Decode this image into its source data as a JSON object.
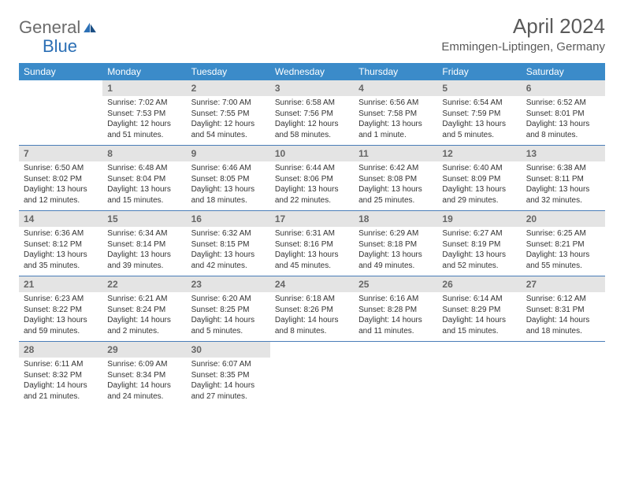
{
  "brand": {
    "part1": "General",
    "part2": "Blue"
  },
  "title": "April 2024",
  "location": "Emmingen-Liptingen, Germany",
  "colors": {
    "header_bg": "#3b8bc9",
    "header_text": "#ffffff",
    "daynum_bg": "#e4e4e4",
    "daynum_text": "#666666",
    "row_border": "#4a7db8",
    "logo_gray": "#6b6b6b",
    "logo_blue": "#2b6fb5",
    "body_text": "#333333",
    "title_text": "#5a5a5a"
  },
  "weekdays": [
    "Sunday",
    "Monday",
    "Tuesday",
    "Wednesday",
    "Thursday",
    "Friday",
    "Saturday"
  ],
  "weeks": [
    [
      null,
      {
        "n": "1",
        "sr": "7:02 AM",
        "ss": "7:53 PM",
        "dl": "12 hours and 51 minutes."
      },
      {
        "n": "2",
        "sr": "7:00 AM",
        "ss": "7:55 PM",
        "dl": "12 hours and 54 minutes."
      },
      {
        "n": "3",
        "sr": "6:58 AM",
        "ss": "7:56 PM",
        "dl": "12 hours and 58 minutes."
      },
      {
        "n": "4",
        "sr": "6:56 AM",
        "ss": "7:58 PM",
        "dl": "13 hours and 1 minute."
      },
      {
        "n": "5",
        "sr": "6:54 AM",
        "ss": "7:59 PM",
        "dl": "13 hours and 5 minutes."
      },
      {
        "n": "6",
        "sr": "6:52 AM",
        "ss": "8:01 PM",
        "dl": "13 hours and 8 minutes."
      }
    ],
    [
      {
        "n": "7",
        "sr": "6:50 AM",
        "ss": "8:02 PM",
        "dl": "13 hours and 12 minutes."
      },
      {
        "n": "8",
        "sr": "6:48 AM",
        "ss": "8:04 PM",
        "dl": "13 hours and 15 minutes."
      },
      {
        "n": "9",
        "sr": "6:46 AM",
        "ss": "8:05 PM",
        "dl": "13 hours and 18 minutes."
      },
      {
        "n": "10",
        "sr": "6:44 AM",
        "ss": "8:06 PM",
        "dl": "13 hours and 22 minutes."
      },
      {
        "n": "11",
        "sr": "6:42 AM",
        "ss": "8:08 PM",
        "dl": "13 hours and 25 minutes."
      },
      {
        "n": "12",
        "sr": "6:40 AM",
        "ss": "8:09 PM",
        "dl": "13 hours and 29 minutes."
      },
      {
        "n": "13",
        "sr": "6:38 AM",
        "ss": "8:11 PM",
        "dl": "13 hours and 32 minutes."
      }
    ],
    [
      {
        "n": "14",
        "sr": "6:36 AM",
        "ss": "8:12 PM",
        "dl": "13 hours and 35 minutes."
      },
      {
        "n": "15",
        "sr": "6:34 AM",
        "ss": "8:14 PM",
        "dl": "13 hours and 39 minutes."
      },
      {
        "n": "16",
        "sr": "6:32 AM",
        "ss": "8:15 PM",
        "dl": "13 hours and 42 minutes."
      },
      {
        "n": "17",
        "sr": "6:31 AM",
        "ss": "8:16 PM",
        "dl": "13 hours and 45 minutes."
      },
      {
        "n": "18",
        "sr": "6:29 AM",
        "ss": "8:18 PM",
        "dl": "13 hours and 49 minutes."
      },
      {
        "n": "19",
        "sr": "6:27 AM",
        "ss": "8:19 PM",
        "dl": "13 hours and 52 minutes."
      },
      {
        "n": "20",
        "sr": "6:25 AM",
        "ss": "8:21 PM",
        "dl": "13 hours and 55 minutes."
      }
    ],
    [
      {
        "n": "21",
        "sr": "6:23 AM",
        "ss": "8:22 PM",
        "dl": "13 hours and 59 minutes."
      },
      {
        "n": "22",
        "sr": "6:21 AM",
        "ss": "8:24 PM",
        "dl": "14 hours and 2 minutes."
      },
      {
        "n": "23",
        "sr": "6:20 AM",
        "ss": "8:25 PM",
        "dl": "14 hours and 5 minutes."
      },
      {
        "n": "24",
        "sr": "6:18 AM",
        "ss": "8:26 PM",
        "dl": "14 hours and 8 minutes."
      },
      {
        "n": "25",
        "sr": "6:16 AM",
        "ss": "8:28 PM",
        "dl": "14 hours and 11 minutes."
      },
      {
        "n": "26",
        "sr": "6:14 AM",
        "ss": "8:29 PM",
        "dl": "14 hours and 15 minutes."
      },
      {
        "n": "27",
        "sr": "6:12 AM",
        "ss": "8:31 PM",
        "dl": "14 hours and 18 minutes."
      }
    ],
    [
      {
        "n": "28",
        "sr": "6:11 AM",
        "ss": "8:32 PM",
        "dl": "14 hours and 21 minutes."
      },
      {
        "n": "29",
        "sr": "6:09 AM",
        "ss": "8:34 PM",
        "dl": "14 hours and 24 minutes."
      },
      {
        "n": "30",
        "sr": "6:07 AM",
        "ss": "8:35 PM",
        "dl": "14 hours and 27 minutes."
      },
      null,
      null,
      null,
      null
    ]
  ],
  "labels": {
    "sunrise": "Sunrise:",
    "sunset": "Sunset:",
    "daylight": "Daylight:"
  }
}
